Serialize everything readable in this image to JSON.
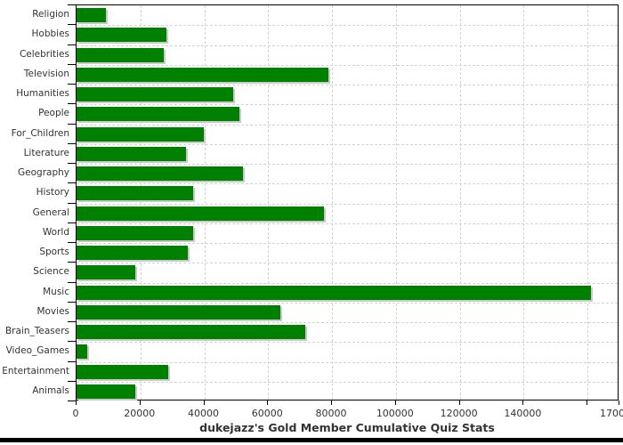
{
  "chart_data": {
    "type": "bar",
    "orientation": "horizontal",
    "title": "dukejazz's Gold Member Cumulative Quiz Stats",
    "categories": [
      "Religion",
      "Hobbies",
      "Celebrities",
      "Television",
      "Humanities",
      "People",
      "For_Children",
      "Literature",
      "Geography",
      "History",
      "General",
      "World",
      "Sports",
      "Science",
      "Music",
      "Movies",
      "Brain_Teasers",
      "Video_Games",
      "Entertainment",
      "Animals"
    ],
    "values": [
      9200,
      28100,
      27300,
      78900,
      49100,
      51000,
      39900,
      34300,
      52200,
      36400,
      77500,
      36500,
      34700,
      18300,
      161200,
      63900,
      71700,
      3300,
      28700,
      18400
    ],
    "xlim": [
      0,
      170000
    ],
    "xticks": [
      0,
      20000,
      40000,
      60000,
      80000,
      100000,
      120000,
      140000,
      160000,
      170000
    ],
    "xtick_labels": [
      "0",
      "20000",
      "40000",
      "60000",
      "80000",
      "100000",
      "120000",
      "140000",
      "",
      "170000"
    ],
    "grid": true,
    "legend": false,
    "xlabel": "",
    "ylabel": ""
  },
  "style": {
    "bar_color": "#008000",
    "bar_shadow_color": "#c9c9c9",
    "grid_color": "#d3d3d3",
    "axis_color": "#000000",
    "text_color": "#333333",
    "background_color": "#ffffff"
  }
}
